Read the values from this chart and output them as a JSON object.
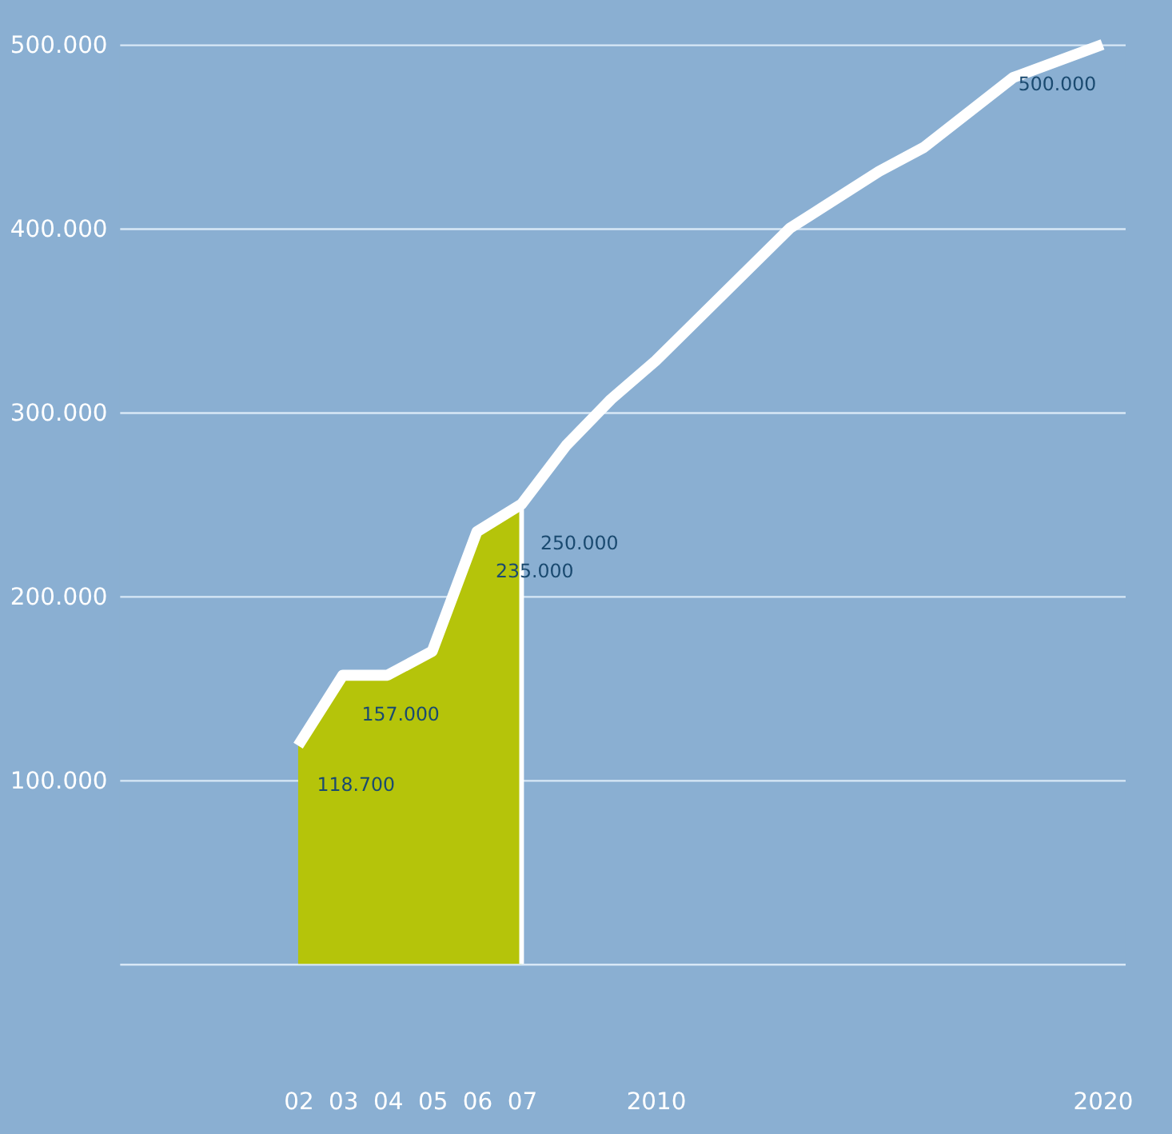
{
  "chart_data": {
    "type": "line",
    "x": [
      2002,
      2003,
      2004,
      2005,
      2006,
      2007,
      2008,
      2009,
      2010,
      2013,
      2015,
      2016,
      2018,
      2020
    ],
    "series": [
      {
        "color": "#ffffff",
        "values": [
          118700,
          157000,
          157000,
          170000,
          235000,
          250000,
          282000,
          307000,
          328000,
          400000,
          431000,
          444000,
          482000,
          500000
        ],
        "value_labels": [
          "118.700",
          "157.000",
          null,
          null,
          "235.000",
          "250.000",
          null,
          null,
          null,
          null,
          null,
          null,
          null,
          "500.000"
        ]
      },
      {
        "type": "area",
        "color": "#b5c40a",
        "x": [
          2002,
          2003,
          2004,
          2005,
          2006,
          2007
        ],
        "values": [
          119000,
          157000,
          157000,
          170000,
          235000,
          250000
        ]
      }
    ],
    "xlim": [
      1998,
      2020.5
    ],
    "xticks": [
      {
        "value": 2002,
        "label": "02"
      },
      {
        "value": 2003,
        "label": "03"
      },
      {
        "value": 2004,
        "label": "04"
      },
      {
        "value": 2005,
        "label": "05"
      },
      {
        "value": 2006,
        "label": "06"
      },
      {
        "value": 2007,
        "label": "07"
      },
      2010,
      2020
    ],
    "ylim": [
      0,
      500000
    ],
    "yticks": [
      {
        "value": 0,
        "label": null
      },
      {
        "value": 100000,
        "label": "100.000"
      },
      {
        "value": 200000,
        "label": "200.000"
      },
      {
        "value": 300000,
        "label": "300.000"
      },
      {
        "value": 400000,
        "label": "400.000"
      },
      {
        "value": 500000,
        "label": "500.000"
      }
    ],
    "ref_lines": [
      {
        "axis": "x",
        "value": 2007,
        "color": "#ffffff"
      }
    ],
    "grid": "y",
    "line_style": "solid",
    "marker": "none"
  }
}
